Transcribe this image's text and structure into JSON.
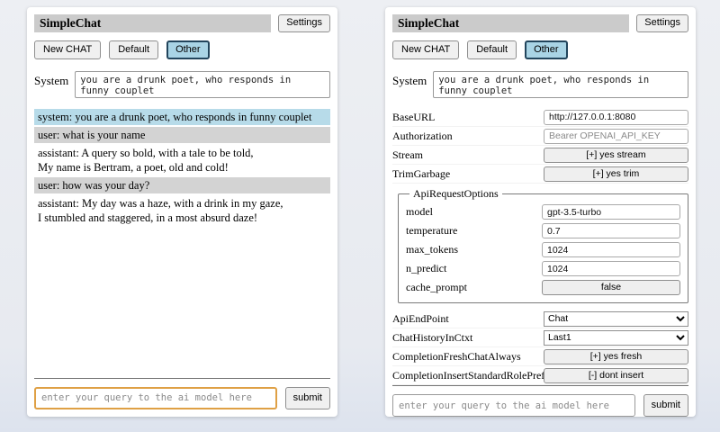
{
  "colors": {
    "titlebar_bg": "#cbcbcb",
    "selected_session_bg": "#a9d4e5",
    "selected_session_border": "#22455c",
    "system_msg_bg": "#b7dbe9",
    "user_msg_bg": "#d3d3d3",
    "focused_input_border": "#dfa045"
  },
  "shared": {
    "title": "SimpleChat",
    "settings_label": "Settings",
    "new_chat_label": "New CHAT",
    "session_default_label": "Default",
    "session_other_label": "Other",
    "system_label": "System",
    "system_prompt": "you are a drunk poet, who responds in funny couplet",
    "query_placeholder": "enter your query to the ai model here",
    "submit_label": "submit"
  },
  "chat": {
    "messages": [
      {
        "role": "system",
        "text": "system: you are a drunk poet, who responds in funny couplet"
      },
      {
        "role": "user",
        "text": "user: what is your name"
      },
      {
        "role": "assistant",
        "text": "assistant: A query so bold, with a tale to be told,\nMy name is Bertram, a poet, old and cold!"
      },
      {
        "role": "user",
        "text": "user: how was your day?"
      },
      {
        "role": "assistant",
        "text": "assistant: My day was a haze, with a drink in my gaze,\nI stumbled and staggered, in a most absurd daze!"
      }
    ]
  },
  "settings": {
    "base_url": {
      "label": "BaseURL",
      "value": "http://127.0.0.1:8080"
    },
    "authorization": {
      "label": "Authorization",
      "placeholder": "Bearer OPENAI_API_KEY"
    },
    "stream": {
      "label": "Stream",
      "button": "[+] yes stream"
    },
    "trim_garbage": {
      "label": "TrimGarbage",
      "button": "[+] yes trim"
    },
    "api_request_options": {
      "legend": "ApiRequestOptions",
      "model": {
        "label": "model",
        "value": "gpt-3.5-turbo"
      },
      "temperature": {
        "label": "temperature",
        "value": "0.7"
      },
      "max_tokens": {
        "label": "max_tokens",
        "value": "1024"
      },
      "n_predict": {
        "label": "n_predict",
        "value": "1024"
      },
      "cache_prompt": {
        "label": "cache_prompt",
        "button": "false"
      }
    },
    "api_endpoint": {
      "label": "ApiEndPoint",
      "value": "Chat"
    },
    "chat_history_in_ctxt": {
      "label": "ChatHistoryInCtxt",
      "value": "Last1"
    },
    "completion_fresh_chat_always": {
      "label": "CompletionFreshChatAlways",
      "button": "[+] yes fresh"
    },
    "completion_insert_standard_role_prefix": {
      "label": "CompletionInsertStandardRolePrefix",
      "button": "[-] dont insert"
    }
  }
}
